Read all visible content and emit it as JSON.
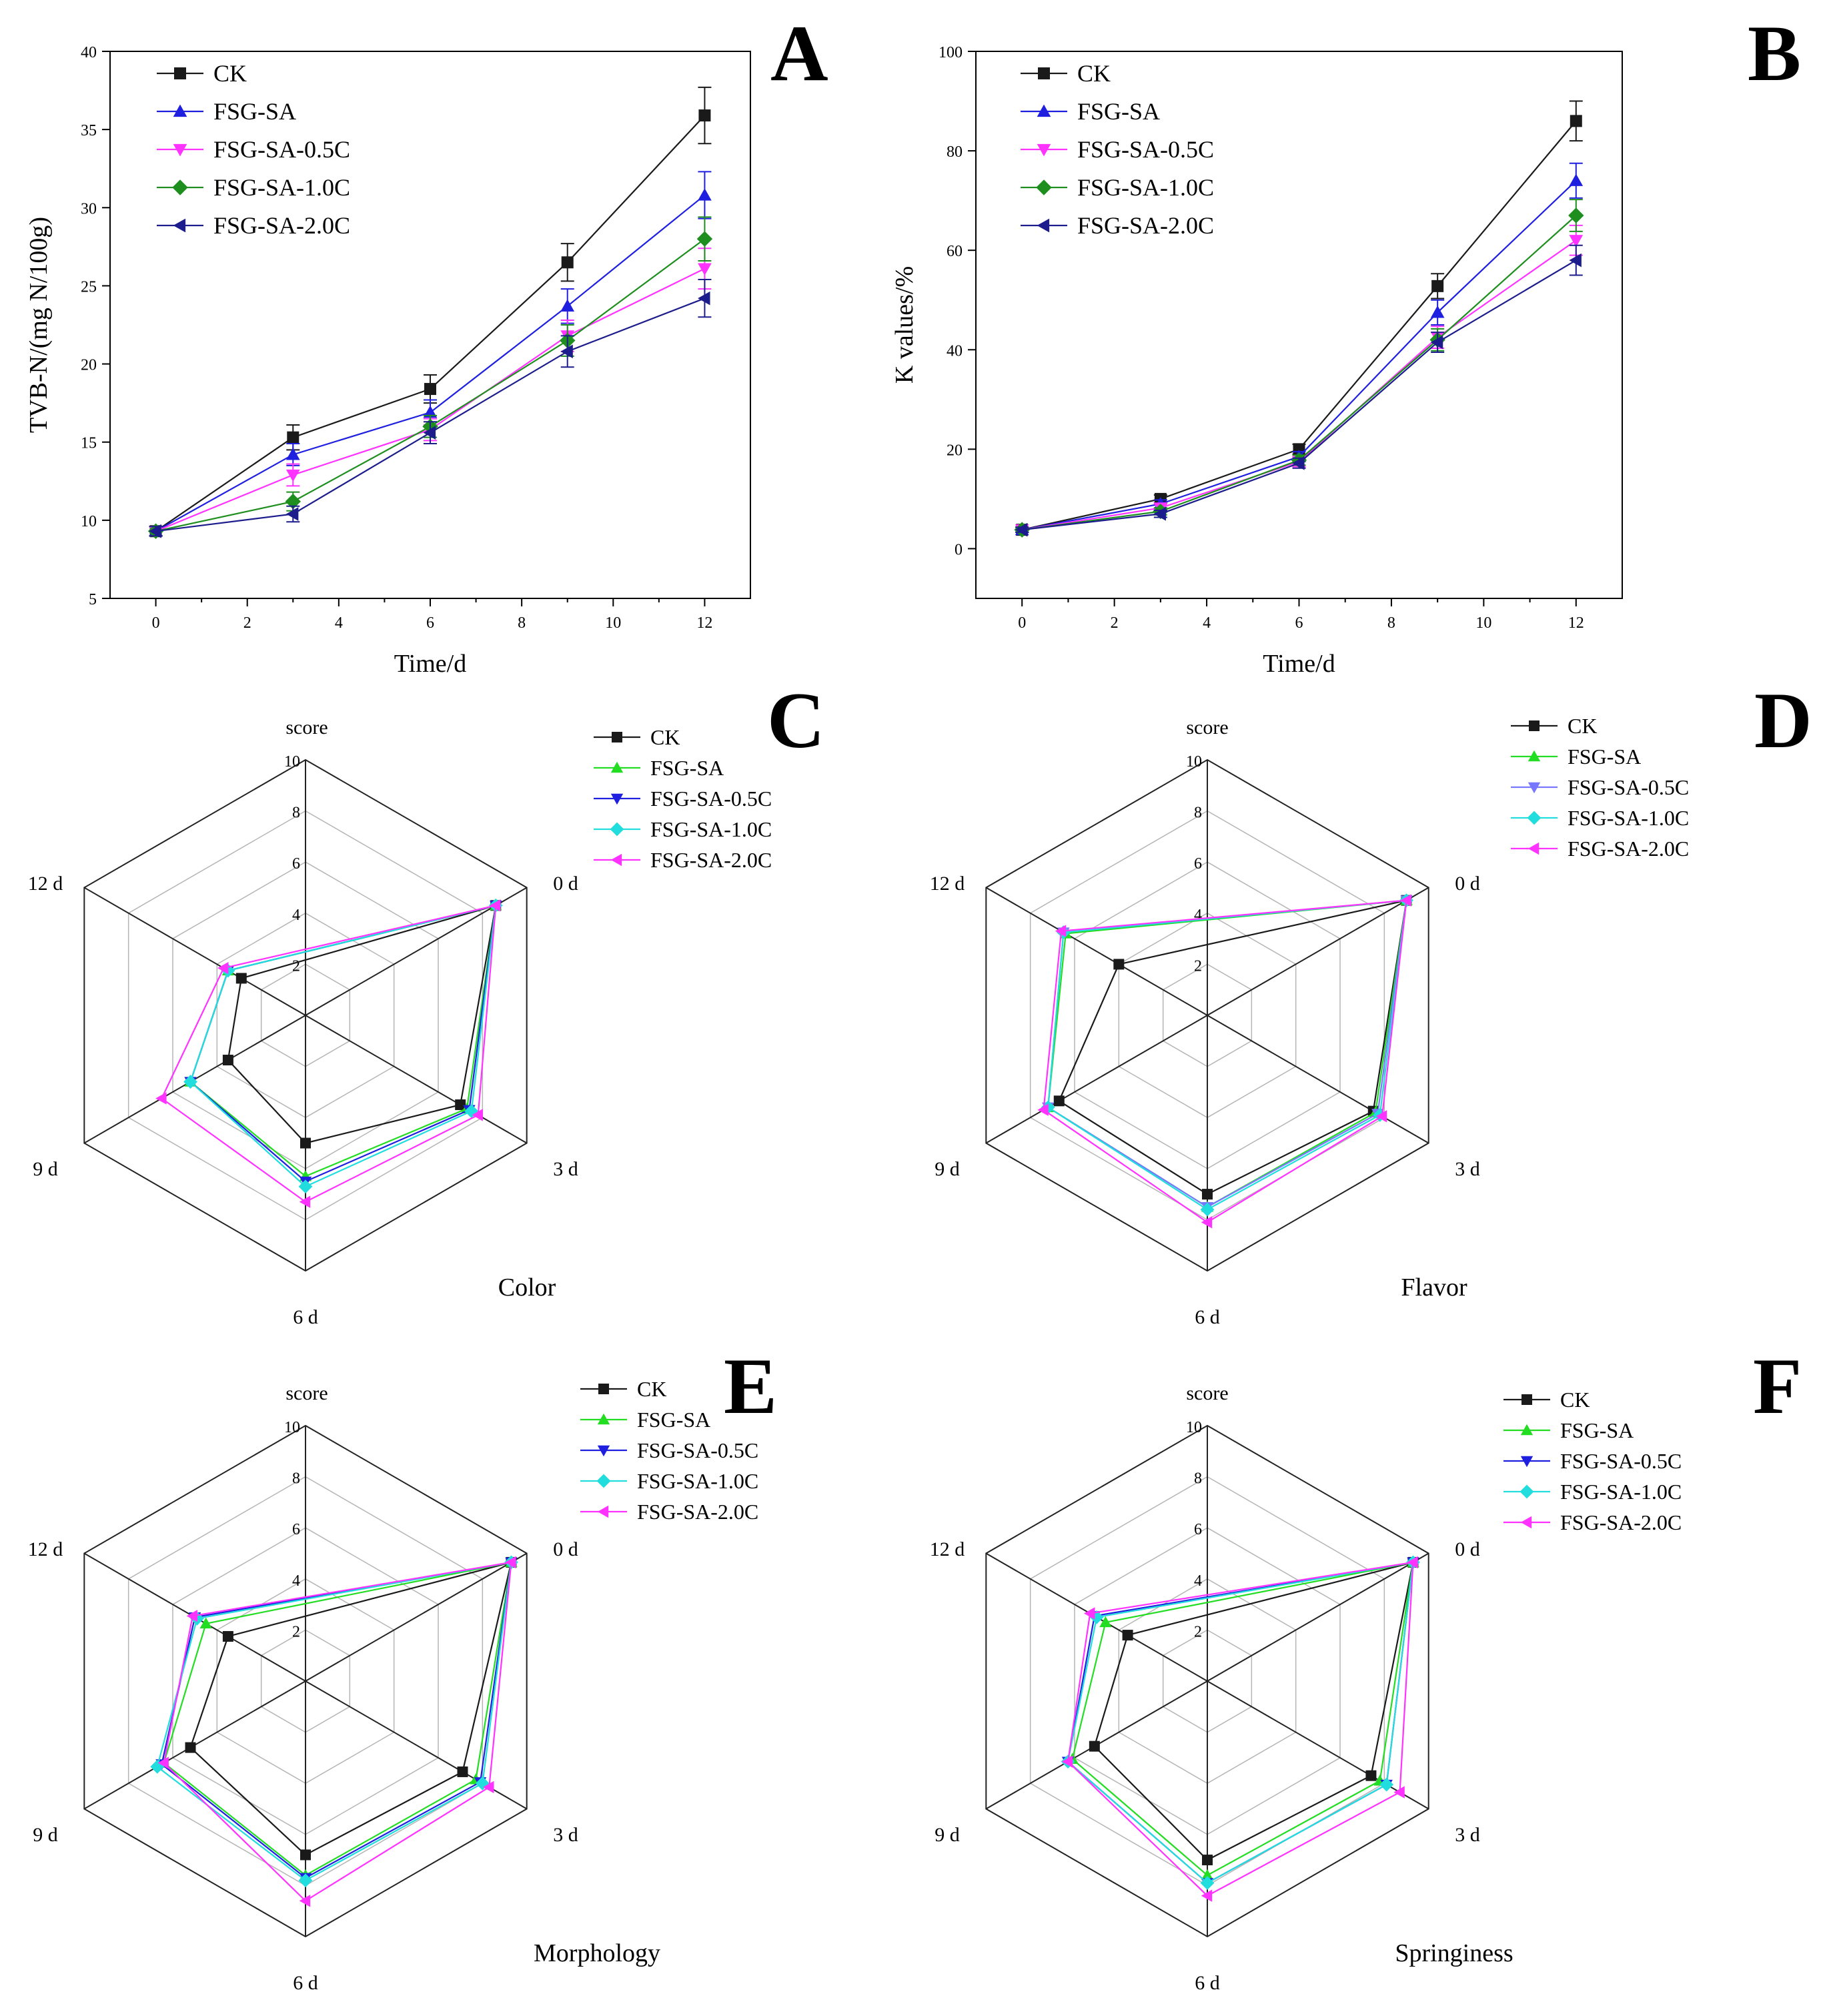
{
  "chart_data": [
    {
      "panel": "A",
      "type": "line",
      "xlabel": "Time/d",
      "ylabel": "TVB-N/(mg N/100g)",
      "xlim": [
        -1,
        13
      ],
      "ylim": [
        5,
        40
      ],
      "xticks": [
        0,
        2,
        4,
        6,
        8,
        10,
        12
      ],
      "yticks": [
        5,
        10,
        15,
        20,
        25,
        30,
        35,
        40
      ],
      "x": [
        0,
        3,
        6,
        9,
        12
      ],
      "series": [
        {
          "name": "CK",
          "color": "#1a1a1a",
          "marker": "square",
          "values": [
            9.3,
            15.3,
            18.4,
            26.5,
            35.9
          ],
          "errors": [
            0.3,
            0.8,
            0.9,
            1.2,
            1.8
          ]
        },
        {
          "name": "FSG-SA",
          "color": "#1f1fe0",
          "marker": "triangle-up",
          "values": [
            9.3,
            14.2,
            16.9,
            23.7,
            30.8
          ],
          "errors": [
            0.3,
            0.7,
            0.8,
            1.1,
            1.5
          ]
        },
        {
          "name": "FSG-SA-0.5C",
          "color": "#ff33ff",
          "marker": "triangle-down",
          "values": [
            9.3,
            12.9,
            15.8,
            21.8,
            26.1
          ],
          "errors": [
            0.3,
            0.7,
            0.7,
            1.0,
            1.3
          ]
        },
        {
          "name": "FSG-SA-1.0C",
          "color": "#1e8f1e",
          "marker": "diamond",
          "values": [
            9.3,
            11.2,
            16.0,
            21.5,
            28.0
          ],
          "errors": [
            0.3,
            0.6,
            0.7,
            1.0,
            1.4
          ]
        },
        {
          "name": "FSG-SA-2.0C",
          "color": "#1c1c8c",
          "marker": "triangle-left",
          "values": [
            9.3,
            10.4,
            15.6,
            20.8,
            24.2
          ],
          "errors": [
            0.3,
            0.5,
            0.7,
            1.0,
            1.2
          ]
        }
      ]
    },
    {
      "panel": "B",
      "type": "line",
      "xlabel": "Time/d",
      "ylabel": "K values/%",
      "xlim": [
        -1,
        13
      ],
      "ylim": [
        -10,
        100
      ],
      "xticks": [
        0,
        2,
        4,
        6,
        8,
        10,
        12
      ],
      "yticks": [
        0,
        20,
        40,
        60,
        80,
        100
      ],
      "x": [
        0,
        3,
        6,
        9,
        12
      ],
      "series": [
        {
          "name": "CK",
          "color": "#1a1a1a",
          "marker": "square",
          "values": [
            3.8,
            10.0,
            20.0,
            52.8,
            86.0
          ],
          "errors": [
            0.5,
            0.8,
            1.0,
            2.5,
            4.0
          ]
        },
        {
          "name": "FSG-SA",
          "color": "#1f1fe0",
          "marker": "triangle-up",
          "values": [
            3.8,
            9.0,
            18.5,
            47.5,
            74.0
          ],
          "errors": [
            0.5,
            0.8,
            1.0,
            2.5,
            3.5
          ]
        },
        {
          "name": "FSG-SA-0.5C",
          "color": "#ff33ff",
          "marker": "triangle-down",
          "values": [
            3.8,
            8.2,
            17.5,
            42.5,
            62.0
          ],
          "errors": [
            0.5,
            0.8,
            1.0,
            2.2,
            3.0
          ]
        },
        {
          "name": "FSG-SA-1.0C",
          "color": "#1e8f1e",
          "marker": "diamond",
          "values": [
            3.8,
            7.5,
            17.8,
            42.0,
            67.0
          ],
          "errors": [
            0.5,
            0.7,
            1.0,
            2.2,
            3.2
          ]
        },
        {
          "name": "FSG-SA-2.0C",
          "color": "#1c1c8c",
          "marker": "triangle-left",
          "values": [
            3.8,
            7.0,
            17.2,
            41.5,
            58.0
          ],
          "errors": [
            0.5,
            0.7,
            1.0,
            2.0,
            3.0
          ]
        }
      ]
    },
    {
      "panel": "C",
      "type": "radar",
      "title": "Color",
      "radial_label": "score",
      "rticks": [
        2,
        4,
        6,
        8,
        10
      ],
      "rmax": 10,
      "categories": [
        "0 d",
        "3 d",
        "6 d",
        "9 d",
        "12 d"
      ],
      "series": [
        {
          "name": "CK",
          "color": "#1a1a1a",
          "marker": "square",
          "values": [
            8.6,
            7.0,
            5.0,
            3.5,
            2.9
          ]
        },
        {
          "name": "FSG-SA",
          "color": "#22dd22",
          "marker": "triangle-up",
          "values": [
            8.6,
            7.3,
            6.3,
            5.2,
            3.5
          ]
        },
        {
          "name": "FSG-SA-0.5C",
          "color": "#1f1fe0",
          "marker": "triangle-down",
          "values": [
            8.6,
            7.4,
            6.5,
            5.2,
            3.5
          ]
        },
        {
          "name": "FSG-SA-1.0C",
          "color": "#22dddd",
          "marker": "diamond",
          "values": [
            8.6,
            7.5,
            6.7,
            5.2,
            3.5
          ]
        },
        {
          "name": "FSG-SA-2.0C",
          "color": "#ff33ff",
          "marker": "triangle-left",
          "values": [
            8.6,
            7.8,
            7.3,
            6.5,
            3.7
          ]
        }
      ]
    },
    {
      "panel": "D",
      "type": "radar",
      "title": "Flavor",
      "radial_label": "score",
      "rticks": [
        2,
        4,
        6,
        8,
        10
      ],
      "rmax": 10,
      "categories": [
        "0 d",
        "3 d",
        "6 d",
        "9 d",
        "12 d"
      ],
      "series": [
        {
          "name": "CK",
          "color": "#1a1a1a",
          "marker": "square",
          "values": [
            9.0,
            7.5,
            7.0,
            6.7,
            4.0
          ]
        },
        {
          "name": "FSG-SA",
          "color": "#22dd22",
          "marker": "triangle-up",
          "values": [
            9.0,
            7.6,
            7.5,
            7.2,
            6.4
          ]
        },
        {
          "name": "FSG-SA-0.5C",
          "color": "#7777ff",
          "marker": "triangle-down",
          "values": [
            9.0,
            7.7,
            7.5,
            7.2,
            6.5
          ]
        },
        {
          "name": "FSG-SA-1.0C",
          "color": "#22dddd",
          "marker": "diamond",
          "values": [
            9.0,
            7.8,
            7.6,
            7.2,
            6.5
          ]
        },
        {
          "name": "FSG-SA-2.0C",
          "color": "#ff33ff",
          "marker": "triangle-left",
          "values": [
            9.0,
            7.9,
            8.1,
            7.4,
            6.6
          ]
        }
      ]
    },
    {
      "panel": "E",
      "type": "radar",
      "title": "Morphology",
      "radial_label": "score",
      "rticks": [
        2,
        4,
        6,
        8,
        10
      ],
      "rmax": 10,
      "categories": [
        "0 d",
        "3 d",
        "6 d",
        "9 d",
        "12 d"
      ],
      "series": [
        {
          "name": "CK",
          "color": "#1a1a1a",
          "marker": "square",
          "values": [
            9.3,
            7.1,
            6.8,
            5.2,
            3.5
          ]
        },
        {
          "name": "FSG-SA",
          "color": "#22dd22",
          "marker": "triangle-up",
          "values": [
            9.3,
            7.7,
            7.6,
            6.4,
            4.5
          ]
        },
        {
          "name": "FSG-SA-0.5C",
          "color": "#1f1fe0",
          "marker": "triangle-down",
          "values": [
            9.3,
            7.9,
            7.7,
            6.5,
            5.0
          ]
        },
        {
          "name": "FSG-SA-1.0C",
          "color": "#22dddd",
          "marker": "diamond",
          "values": [
            9.3,
            8.0,
            7.8,
            6.7,
            4.9
          ]
        },
        {
          "name": "FSG-SA-2.0C",
          "color": "#ff33ff",
          "marker": "triangle-left",
          "values": [
            9.3,
            8.3,
            8.6,
            6.4,
            5.1
          ]
        }
      ]
    },
    {
      "panel": "F",
      "type": "radar",
      "title": "Springiness",
      "radial_label": "score",
      "rticks": [
        2,
        4,
        6,
        8,
        10
      ],
      "rmax": 10,
      "categories": [
        "0 d",
        "3 d",
        "6 d",
        "9 d",
        "12 d"
      ],
      "series": [
        {
          "name": "CK",
          "color": "#1a1a1a",
          "marker": "square",
          "values": [
            9.3,
            7.4,
            7.0,
            5.1,
            3.6
          ]
        },
        {
          "name": "FSG-SA",
          "color": "#22dd22",
          "marker": "triangle-up",
          "values": [
            9.3,
            7.8,
            7.6,
            6.1,
            4.6
          ]
        },
        {
          "name": "FSG-SA-0.5C",
          "color": "#1f1fe0",
          "marker": "triangle-down",
          "values": [
            9.3,
            8.1,
            7.9,
            6.3,
            5.1
          ]
        },
        {
          "name": "FSG-SA-1.0C",
          "color": "#22dddd",
          "marker": "diamond",
          "values": [
            9.3,
            8.1,
            7.9,
            6.3,
            5.0
          ]
        },
        {
          "name": "FSG-SA-2.0C",
          "color": "#ff33ff",
          "marker": "triangle-left",
          "values": [
            9.3,
            8.7,
            8.4,
            6.3,
            5.3
          ]
        }
      ]
    }
  ]
}
